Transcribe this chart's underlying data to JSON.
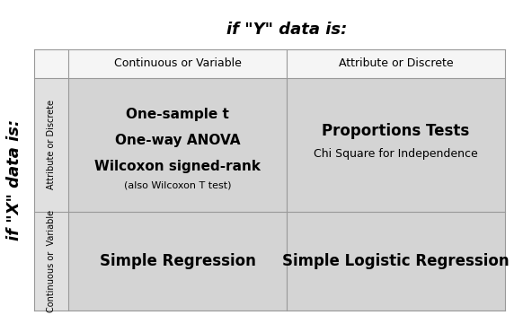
{
  "title": "if \"Y\" data is:",
  "ylabel": "if \"X\" data is:",
  "col_headers": [
    "Continuous or Variable",
    "Attribute or Discrete"
  ],
  "row_headers": [
    "Attribute or Discrete",
    "Continuous or  Variable"
  ],
  "cells": [
    {
      "row": 0,
      "col": 0,
      "lines": [
        "One-sample t",
        "One-way ANOVA",
        "Wilcoxon signed-rank"
      ],
      "subtext": "(also Wilcoxon T test)",
      "bg": "#d4d4d4"
    },
    {
      "row": 0,
      "col": 1,
      "lines": [
        "Proportions Tests"
      ],
      "subtext": "Chi Square for Independence",
      "bg": "#d4d4d4"
    },
    {
      "row": 1,
      "col": 0,
      "lines": [
        "Simple Regression"
      ],
      "subtext": "",
      "bg": "#d4d4d4"
    },
    {
      "row": 1,
      "col": 1,
      "lines": [
        "Simple Logistic Regression"
      ],
      "subtext": "",
      "bg": "#d4d4d4"
    }
  ],
  "grid_color": "#999999",
  "bg_color": "#ffffff",
  "title_fontsize": 13,
  "header_fontsize": 9,
  "cell_main_fontsize": 11,
  "cell_sub_fontsize": 8,
  "row_header_fontsize": 7
}
